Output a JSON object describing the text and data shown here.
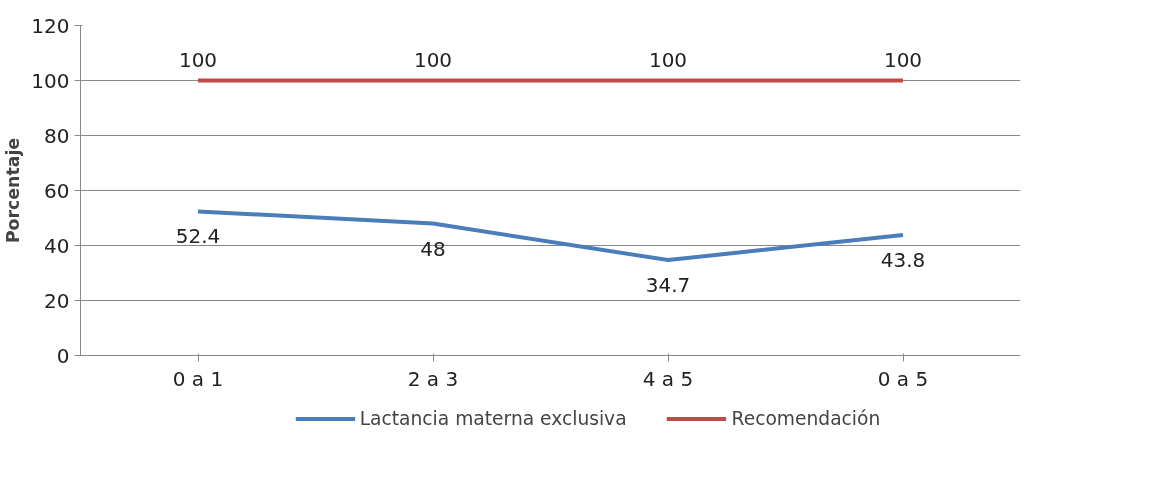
{
  "chart_data": {
    "type": "line",
    "ylabel": "Porcentaje",
    "categories": [
      "0 a 1",
      "2 a 3",
      "4 a 5",
      "0 a 5"
    ],
    "series": [
      {
        "name": "Lactancia materna exclusiva",
        "color": "#4a7ebb",
        "values": [
          52.4,
          48,
          34.7,
          43.8
        ]
      },
      {
        "name": "Recomendación",
        "color": "#be4b48",
        "values": [
          100,
          100,
          100,
          100
        ]
      }
    ],
    "ylim": [
      0,
      120
    ],
    "yticks": [
      0,
      20,
      40,
      60,
      80,
      100,
      120
    ],
    "grid": "y",
    "legend": "bottom",
    "data_labels": true,
    "marker": "none",
    "line_style": "solid"
  }
}
